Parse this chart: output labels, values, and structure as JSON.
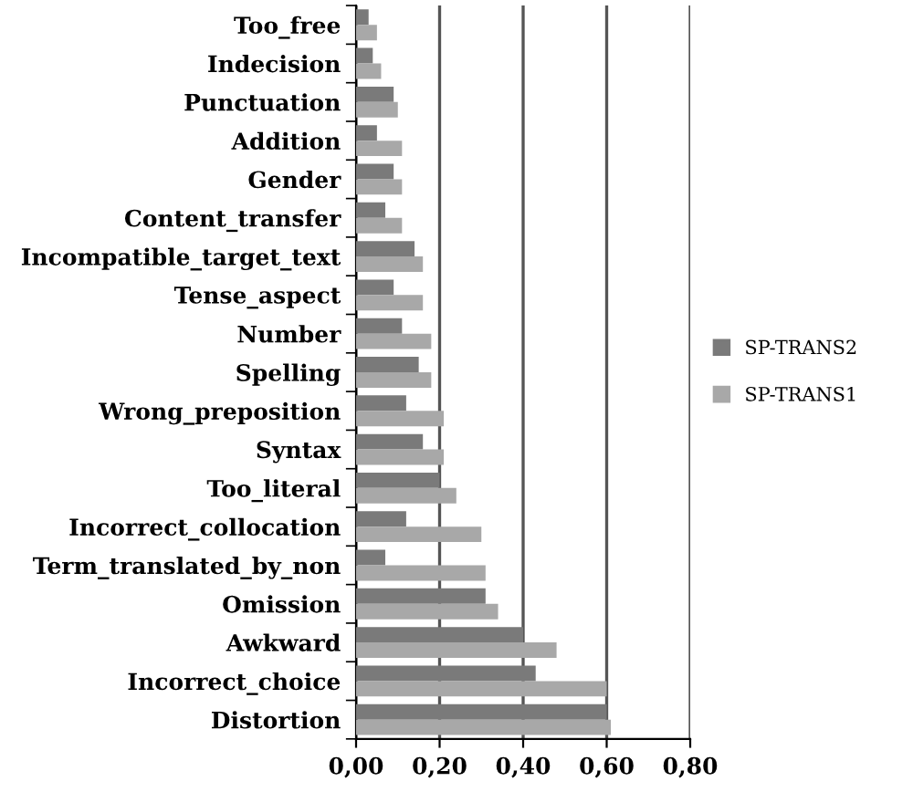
{
  "chart_data": {
    "type": "bar",
    "orientation": "horizontal",
    "categories": [
      "Too_free",
      "Indecision",
      "Punctuation",
      "Addition",
      "Gender",
      "Content_transfer",
      "Incompatible_target_text",
      "Tense_aspect",
      "Number",
      "Spelling",
      "Wrong_preposition",
      "Syntax",
      "Too_literal",
      "Incorrect_collocation",
      "Term_translated_by_non",
      "Omission",
      "Awkward",
      "Incorrect_choice",
      "Distortion"
    ],
    "series": [
      {
        "name": "SP-TRANS2",
        "color": "#7a7a7a",
        "values": [
          0.03,
          0.04,
          0.09,
          0.05,
          0.09,
          0.07,
          0.14,
          0.09,
          0.11,
          0.15,
          0.12,
          0.16,
          0.2,
          0.12,
          0.07,
          0.31,
          0.4,
          0.43,
          0.6
        ]
      },
      {
        "name": "SP-TRANS1",
        "color": "#a8a8a8",
        "values": [
          0.05,
          0.06,
          0.1,
          0.11,
          0.11,
          0.11,
          0.16,
          0.16,
          0.18,
          0.18,
          0.21,
          0.21,
          0.24,
          0.3,
          0.31,
          0.34,
          0.48,
          0.6,
          0.61
        ]
      }
    ],
    "xlim": [
      0,
      0.8
    ],
    "xticks": [
      {
        "value": 0,
        "label": "0,00"
      },
      {
        "value": 0.2,
        "label": "0,20"
      },
      {
        "value": 0.4,
        "label": "0,40"
      },
      {
        "value": 0.6,
        "label": "0,60"
      },
      {
        "value": 0.8,
        "label": "0,80"
      }
    ],
    "grid": "x",
    "legend": "right"
  }
}
